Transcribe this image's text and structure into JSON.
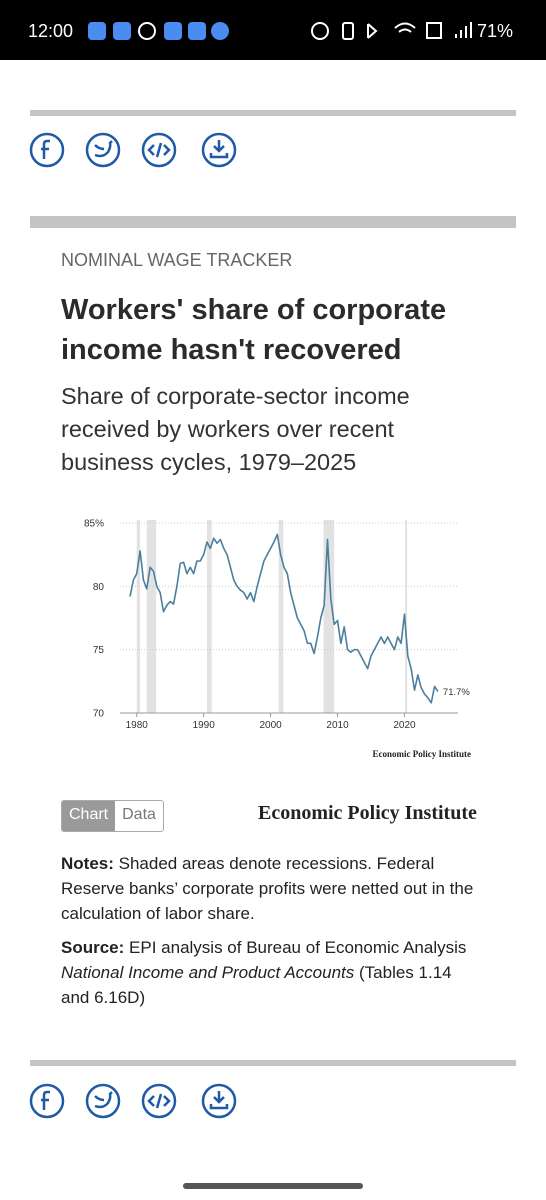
{
  "status_bar": {
    "time": "12:00",
    "battery": "71%"
  },
  "article": {
    "eyebrow": "NOMINAL WAGE TRACKER",
    "title": "Workers' share of corporate income hasn't recovered",
    "subtitle": "Share of corporate-sector income received by workers over recent business cycles, 1979–2025"
  },
  "chart_data": {
    "type": "line",
    "xlim": [
      1977.5,
      2028
    ],
    "xticks": [
      1980,
      1990,
      2000,
      2010,
      2020
    ],
    "ylim": [
      70,
      85
    ],
    "yticks": [
      {
        "value": 85,
        "label": "85%"
      },
      80,
      75,
      70
    ],
    "grid": true,
    "recessions": [
      [
        1980,
        1980.5
      ],
      [
        1981.5,
        1982.9
      ],
      [
        1990.5,
        1991.2
      ],
      [
        2001.2,
        2001.9
      ],
      [
        2007.9,
        2009.5
      ],
      [
        2020.1,
        2020.4
      ]
    ],
    "x": [
      1979,
      1979.5,
      1980,
      1980.5,
      1981,
      1981.5,
      1982,
      1982.5,
      1983,
      1983.5,
      1984,
      1984.5,
      1985,
      1985.5,
      1986,
      1986.5,
      1987,
      1987.5,
      1988,
      1988.5,
      1989,
      1989.5,
      1990,
      1990.5,
      1991,
      1991.5,
      1992,
      1992.5,
      1993,
      1993.5,
      1994,
      1994.5,
      1995,
      1995.5,
      1996,
      1996.5,
      1997,
      1997.5,
      1998,
      1998.5,
      1999,
      1999.5,
      2000,
      2000.5,
      2001,
      2001.5,
      2002,
      2002.5,
      2003,
      2003.5,
      2004,
      2004.5,
      2005,
      2005.5,
      2006,
      2006.5,
      2007,
      2007.5,
      2008,
      2008.5,
      2009,
      2009.5,
      2010,
      2010.5,
      2011,
      2011.5,
      2012,
      2012.5,
      2013,
      2013.5,
      2014,
      2014.5,
      2015,
      2015.5,
      2016,
      2016.5,
      2017,
      2017.5,
      2018,
      2018.5,
      2019,
      2019.5,
      2020,
      2020.5,
      2021,
      2021.5,
      2022,
      2022.5,
      2023,
      2023.5,
      2024,
      2024.5,
      2025
    ],
    "series": [
      {
        "name": "Workers' share",
        "color": "#4a7f9e",
        "values": [
          79.2,
          80.5,
          81,
          82.8,
          80.5,
          79.8,
          81.5,
          81.2,
          80,
          79.5,
          78,
          78.5,
          78.8,
          78.6,
          80,
          81.8,
          81.9,
          81,
          81.5,
          81,
          82,
          82,
          82.5,
          83.5,
          83,
          83.8,
          83.4,
          83.7,
          83,
          82.5,
          81.5,
          80.5,
          80,
          79.7,
          79.5,
          79,
          79.5,
          78.8,
          80,
          81,
          82,
          82.5,
          83,
          83.5,
          84.1,
          82.5,
          81.5,
          81,
          79.5,
          78.5,
          77.5,
          77,
          76.5,
          75.5,
          75.5,
          74.7,
          76,
          77.5,
          78.5,
          83.7,
          79,
          77,
          77.3,
          75.5,
          76.8,
          75,
          74.8,
          75,
          75,
          74.5,
          74,
          73.5,
          74.5,
          75,
          75.5,
          76,
          75.5,
          76,
          75.5,
          75,
          76,
          75.5,
          77.8,
          74.5,
          73.5,
          71.8,
          73,
          72,
          71.5,
          71.2,
          70.8,
          72.1,
          71.7
        ],
        "last_label": "71.7%"
      }
    ],
    "source": "Economic Policy Institute"
  },
  "tabs": [
    "Chart",
    "Data"
  ],
  "brand": "Economic Policy Institute",
  "notes": {
    "label": "Notes:",
    "text": "Shaded areas denote recessions. Federal Reserve banks’ corporate profits were netted out in the calculation of labor share."
  },
  "source": {
    "label": "Source:",
    "text": "EPI analysis of Bureau of Economic Analysis",
    "italic": "National Income and Product Accounts",
    "tail": "(Tables 1.14 and 6.16D)"
  }
}
